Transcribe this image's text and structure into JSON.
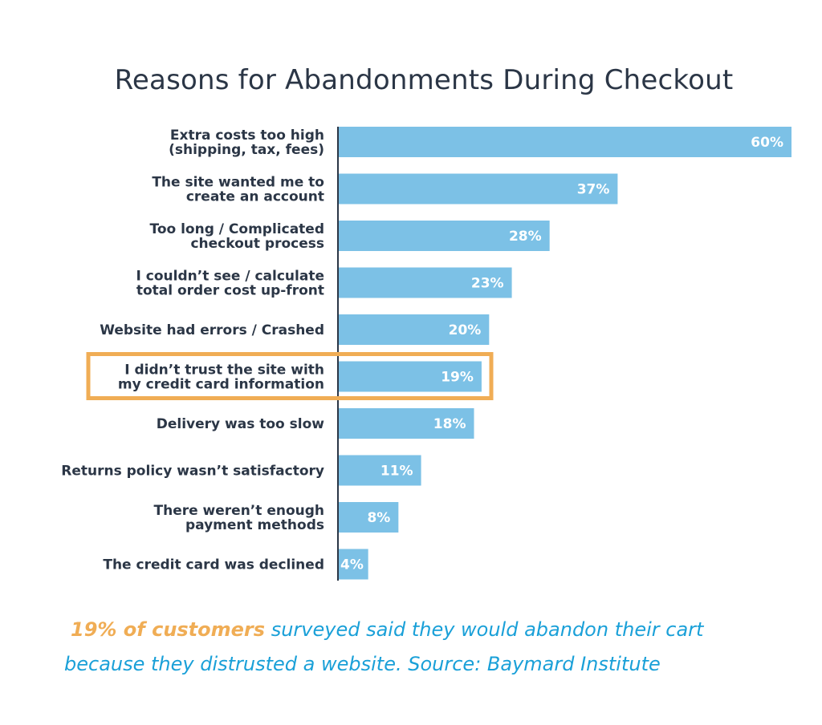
{
  "colors": {
    "bar": "#7cc1e6",
    "axis": "#2b3646",
    "highlight": "#f0ad55",
    "caption": "#1aa0d8"
  },
  "chart_data": {
    "type": "bar",
    "orientation": "horizontal",
    "title": "Reasons for Abandonments During Checkout",
    "categories": [
      [
        "Extra costs too high",
        "(shipping, tax, fees)"
      ],
      [
        "The site wanted me to",
        "create an account"
      ],
      [
        "Too long / Complicated",
        "checkout process"
      ],
      [
        "I couldn’t see / calculate",
        "total order cost up-front"
      ],
      [
        "Website had errors / Crashed"
      ],
      [
        "I didn’t trust the site with",
        "my credit card information"
      ],
      [
        "Delivery was too slow"
      ],
      [
        "Returns policy wasn’t satisfactory"
      ],
      [
        "There weren’t enough",
        "payment methods"
      ],
      [
        "The credit card was declined"
      ]
    ],
    "values": [
      60,
      37,
      28,
      23,
      20,
      19,
      18,
      11,
      8,
      4
    ],
    "value_labels": [
      "60%",
      "37%",
      "28%",
      "23%",
      "20%",
      "19%",
      "18%",
      "11%",
      "8%",
      "4%"
    ],
    "xlim": [
      0,
      60
    ],
    "highlighted_index": 5,
    "grid": false,
    "legend": "none"
  },
  "caption": {
    "highlight": "19% of customers",
    "line1_rest": " surveyed said they would abandon their cart",
    "line2": "because they distrusted a website. Source: Baymard Institute"
  }
}
